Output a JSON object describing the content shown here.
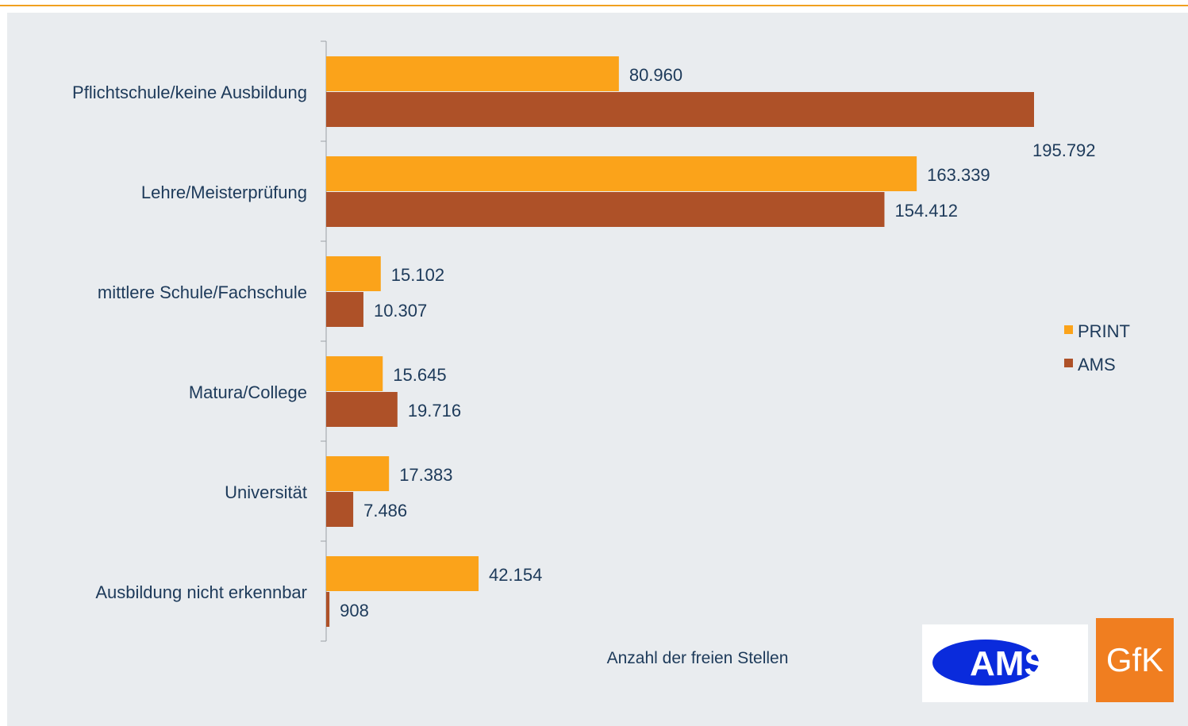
{
  "chart_data": {
    "type": "bar",
    "orientation": "horizontal",
    "categories": [
      "Pflichtschule/keine Ausbildung",
      "Lehre/Meisterprüfung",
      "mittlere Schule/Fachschule",
      "Matura/College",
      "Universität",
      "Ausbildung nicht erkennbar"
    ],
    "series": [
      {
        "name": "PRINT",
        "color": "#fba31a",
        "values": [
          80960,
          163339,
          15102,
          15645,
          17383,
          42154
        ],
        "labels": [
          "80.960",
          "163.339",
          "15.102",
          "15.645",
          "17.383",
          "42.154"
        ]
      },
      {
        "name": "AMS",
        "color": "#ae5128",
        "values": [
          195792,
          154412,
          10307,
          19716,
          7486,
          908
        ],
        "labels": [
          "195.792",
          "154.412",
          "10.307",
          "19.716",
          "7.486",
          "908"
        ]
      }
    ],
    "xlabel": "Anzahl der freien Stellen",
    "ylabel": "",
    "xlim": [
      0,
      210000
    ],
    "grid": false,
    "legend_position": "right"
  },
  "logos": {
    "ams": "AMS",
    "gfk": "GfK"
  }
}
